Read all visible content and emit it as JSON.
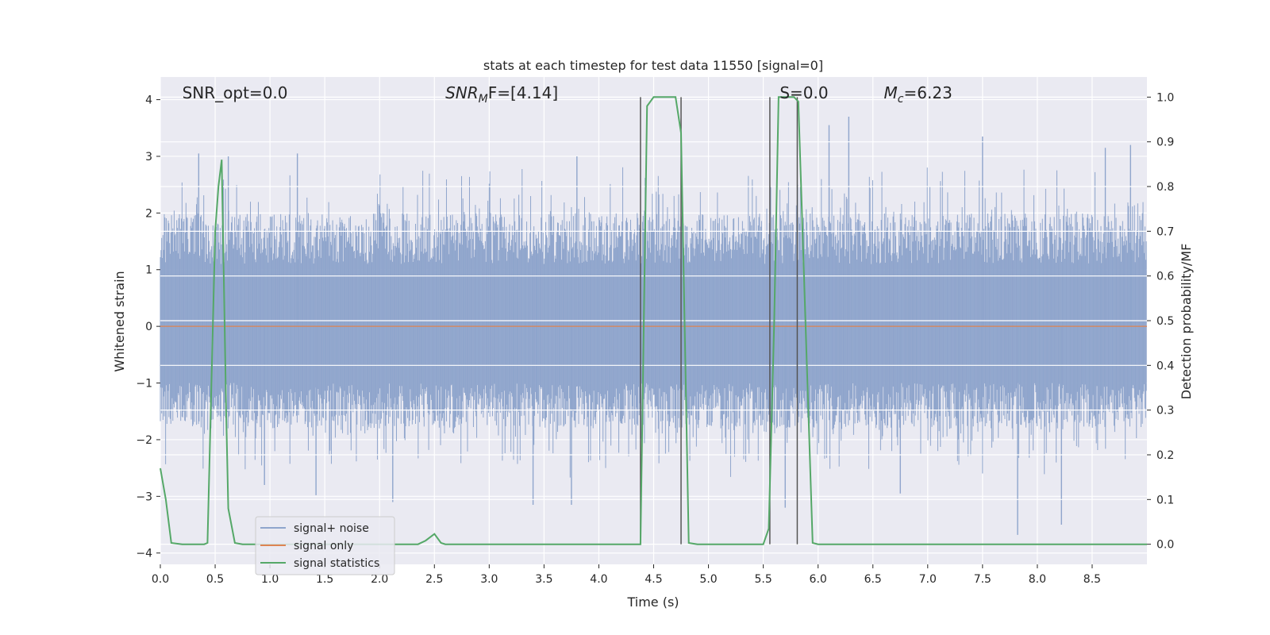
{
  "chart_data": {
    "type": "line",
    "title": "stats at each timestep for test data 11550 [signal=0]",
    "xlabel": "Time (s)",
    "ylabel_left": "Whitened strain",
    "ylabel_right": "Detection probability/MF",
    "xlim": [
      0.0,
      9.0
    ],
    "ylim_left": [
      -4.2,
      4.4
    ],
    "ylim_right": [
      -0.045,
      1.045
    ],
    "x_ticks": [
      0.0,
      0.5,
      1.0,
      1.5,
      2.0,
      2.5,
      3.0,
      3.5,
      4.0,
      4.5,
      5.0,
      5.5,
      6.0,
      6.5,
      7.0,
      7.5,
      8.0,
      8.5
    ],
    "x_tick_labels": [
      "0.0",
      "0.5",
      "1.0",
      "1.5",
      "2.0",
      "2.5",
      "3.0",
      "3.5",
      "4.0",
      "4.5",
      "5.0",
      "5.5",
      "6.0",
      "6.5",
      "7.0",
      "7.5",
      "8.0",
      "8.5"
    ],
    "y_left_ticks": [
      4,
      3,
      2,
      1,
      0,
      -1,
      -2,
      -3,
      -4
    ],
    "y_left_tick_labels": [
      "4",
      "3",
      "2",
      "1",
      "0",
      "−1",
      "−2",
      "−3",
      "−4"
    ],
    "y_right_ticks": [
      1.0,
      0.9,
      0.8,
      0.7,
      0.6,
      0.5,
      0.4,
      0.3,
      0.2,
      0.1,
      0.0
    ],
    "y_right_tick_labels": [
      "1.0",
      "0.9",
      "0.8",
      "0.7",
      "0.6",
      "0.5",
      "0.4",
      "0.3",
      "0.2",
      "0.1",
      "0.0"
    ],
    "grid": true,
    "legend_position": "lower-left",
    "series": [
      {
        "name": "signal+ noise",
        "color": "#8fa5cc",
        "style": "dense noise band, mostly between -1.5 and 1.7, peaks near ±3"
      },
      {
        "name": "signal only",
        "color": "#dd8452",
        "values_constant": 0
      },
      {
        "name": "signal statistics",
        "color": "#55a868",
        "x": [
          0.0,
          0.05,
          0.1,
          0.2,
          0.3,
          0.4,
          0.43,
          0.5,
          0.53,
          0.56,
          0.6,
          0.62,
          0.68,
          0.75,
          1.0,
          2.0,
          2.35,
          2.42,
          2.5,
          2.56,
          2.6,
          3.0,
          4.0,
          4.38,
          4.44,
          4.5,
          4.7,
          4.75,
          4.82,
          4.9,
          5.5,
          5.55,
          5.6,
          5.64,
          5.78,
          5.82,
          5.95,
          6.0,
          7.0,
          8.0,
          9.0
        ],
        "y": [
          0.17,
          0.1,
          0.003,
          0.0,
          0.0,
          0.0,
          0.003,
          0.7,
          0.8,
          0.86,
          0.3,
          0.08,
          0.003,
          0.0,
          0.0,
          0.0,
          0.0,
          0.008,
          0.023,
          0.003,
          0.0,
          0.0,
          0.0,
          0.0,
          0.98,
          1.0,
          1.0,
          0.92,
          0.003,
          0.0,
          0.0,
          0.035,
          0.5,
          1.0,
          1.0,
          0.99,
          0.003,
          0.0,
          0.0,
          0.0,
          0.0
        ]
      }
    ],
    "vertical_lines_x": [
      4.38,
      4.75,
      5.56,
      5.81
    ],
    "annotations": [
      {
        "text": "SNR_opt=0.0",
        "x": 0.2
      },
      {
        "main": "SNR",
        "sub": "M",
        "rest": "F=[4.14]",
        "x": 2.6
      },
      {
        "text": "S=0.0",
        "x": 5.65
      },
      {
        "main": "M",
        "sub": "c",
        "rest": "=6.23",
        "x": 6.6
      }
    ],
    "noise_outliers": [
      {
        "x": 0.35,
        "y": 3.05
      },
      {
        "x": 0.62,
        "y": 3.0
      },
      {
        "x": 1.25,
        "y": 3.05
      },
      {
        "x": 3.8,
        "y": 3.0
      },
      {
        "x": 6.28,
        "y": 3.7
      },
      {
        "x": 6.1,
        "y": 3.55
      },
      {
        "x": 7.5,
        "y": 3.35
      },
      {
        "x": 8.62,
        "y": 3.15
      },
      {
        "x": 8.85,
        "y": 3.2
      },
      {
        "x": 0.95,
        "y": -2.8
      },
      {
        "x": 1.42,
        "y": -2.98
      },
      {
        "x": 2.12,
        "y": -3.1
      },
      {
        "x": 3.4,
        "y": -3.15
      },
      {
        "x": 3.75,
        "y": -3.15
      },
      {
        "x": 5.7,
        "y": -3.2
      },
      {
        "x": 7.82,
        "y": -3.68
      },
      {
        "x": 8.22,
        "y": -3.5
      },
      {
        "x": 6.75,
        "y": -2.95
      }
    ]
  }
}
